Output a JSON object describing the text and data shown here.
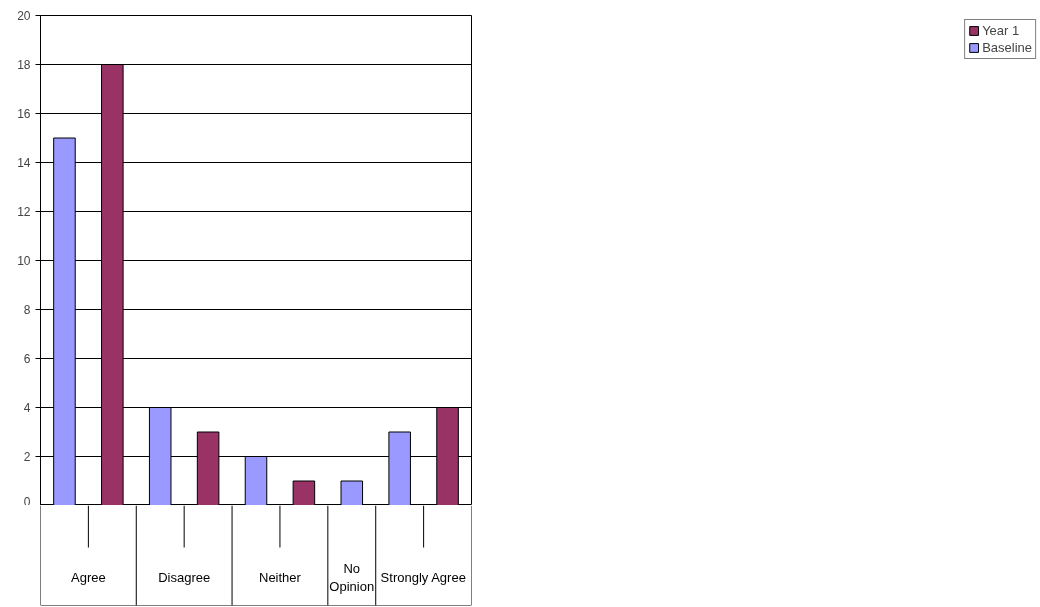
{
  "chart_data": {
    "type": "bar",
    "categories": [
      "Agree",
      "Disagree",
      "Neither",
      "No Opinion",
      "Strongly Agree"
    ],
    "series": [
      {
        "name": "Baseline",
        "color": "#9999ff",
        "values": [
          15,
          4,
          2,
          1,
          3
        ]
      },
      {
        "name": "Year 1",
        "color": "#993366",
        "values": [
          18,
          3,
          1,
          null,
          4
        ]
      }
    ],
    "ylim": [
      0,
      20
    ],
    "yticks": [
      0,
      2,
      4,
      6,
      8,
      10,
      12,
      14,
      16,
      18,
      20
    ],
    "grid": "y",
    "legend": "right"
  }
}
